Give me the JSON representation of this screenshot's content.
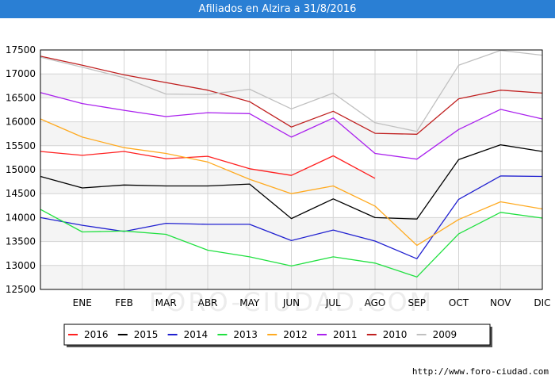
{
  "header": {
    "title": "Afiliados en Alzira a 31/8/2016"
  },
  "watermark": "FORO-CIUDAD.COM",
  "footer": {
    "url": "http://www.foro-ciudad.com"
  },
  "chart_data": {
    "type": "line",
    "title": "Afiliados en Alzira a 31/8/2016",
    "xlabel": "",
    "ylabel": "",
    "x": [
      "",
      "ENE",
      "FEB",
      "MAR",
      "ABR",
      "MAY",
      "JUN",
      "JUL",
      "AGO",
      "SEP",
      "OCT",
      "NOV",
      "DIC"
    ],
    "ylim": [
      12500,
      17500
    ],
    "yticks": [
      12500,
      13000,
      13500,
      14000,
      14500,
      15000,
      15500,
      16000,
      16500,
      17000,
      17500
    ],
    "grid": true,
    "legend_position": "bottom",
    "series": [
      {
        "name": "2016",
        "color": "#ff2020",
        "values": [
          15380,
          15300,
          15380,
          15230,
          15280,
          15020,
          14880,
          15290,
          14820,
          null,
          null,
          null,
          null
        ]
      },
      {
        "name": "2015",
        "color": "#000000",
        "values": [
          14860,
          14620,
          14680,
          14660,
          14660,
          14700,
          13980,
          14390,
          14000,
          13970,
          15210,
          15520,
          15380
        ]
      },
      {
        "name": "2014",
        "color": "#2020d0",
        "values": [
          14000,
          13840,
          13710,
          13880,
          13860,
          13860,
          13520,
          13740,
          13510,
          13140,
          14380,
          14870,
          14860
        ]
      },
      {
        "name": "2013",
        "color": "#20e040",
        "values": [
          14170,
          13700,
          13720,
          13650,
          13320,
          13180,
          12990,
          13180,
          13050,
          12760,
          13660,
          14110,
          13990
        ]
      },
      {
        "name": "2012",
        "color": "#ffaa20",
        "values": [
          16060,
          15680,
          15460,
          15340,
          15160,
          14800,
          14500,
          14660,
          14240,
          13420,
          13960,
          14330,
          14180
        ]
      },
      {
        "name": "2011",
        "color": "#aa20ee",
        "values": [
          16610,
          16380,
          16240,
          16110,
          16190,
          16170,
          15680,
          16080,
          15340,
          15220,
          15840,
          16260,
          16060
        ]
      },
      {
        "name": "2010",
        "color": "#c02020",
        "values": [
          17370,
          17180,
          16980,
          16820,
          16660,
          16420,
          15890,
          16220,
          15760,
          15740,
          16480,
          16660,
          16600
        ]
      },
      {
        "name": "2009",
        "color": "#c0c0c0",
        "values": [
          17350,
          17140,
          16920,
          16580,
          16570,
          16680,
          16270,
          16600,
          15980,
          15800,
          17180,
          17490,
          17390
        ]
      }
    ]
  }
}
